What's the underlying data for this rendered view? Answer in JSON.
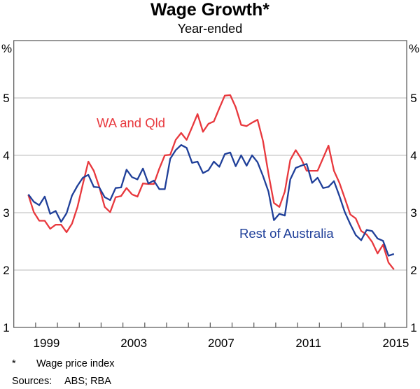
{
  "chart_data": {
    "type": "line",
    "title": "Wage Growth*",
    "subtitle": "Year-ended",
    "ylabel_left": "%",
    "ylabel_right": "%",
    "ylim": [
      1,
      6
    ],
    "yticks": [
      1,
      2,
      3,
      4,
      5
    ],
    "xlim": [
      1998,
      2016
    ],
    "xtick_labels": [
      "1999",
      "2003",
      "2007",
      "2011",
      "2015"
    ],
    "grid": true,
    "frequency": "quarterly",
    "x": [
      "1998-09",
      "1998-12",
      "1999-03",
      "1999-06",
      "1999-09",
      "1999-12",
      "2000-03",
      "2000-06",
      "2000-09",
      "2000-12",
      "2001-03",
      "2001-06",
      "2001-09",
      "2001-12",
      "2002-03",
      "2002-06",
      "2002-09",
      "2002-12",
      "2003-03",
      "2003-06",
      "2003-09",
      "2003-12",
      "2004-03",
      "2004-06",
      "2004-09",
      "2004-12",
      "2005-03",
      "2005-06",
      "2005-09",
      "2005-12",
      "2006-03",
      "2006-06",
      "2006-09",
      "2006-12",
      "2007-03",
      "2007-06",
      "2007-09",
      "2007-12",
      "2008-03",
      "2008-06",
      "2008-09",
      "2008-12",
      "2009-03",
      "2009-06",
      "2009-09",
      "2009-12",
      "2010-03",
      "2010-06",
      "2010-09",
      "2010-12",
      "2011-03",
      "2011-06",
      "2011-09",
      "2011-12",
      "2012-03",
      "2012-06",
      "2012-09",
      "2012-12",
      "2013-03",
      "2013-06",
      "2013-09",
      "2013-12",
      "2014-03",
      "2014-06",
      "2014-09",
      "2014-12",
      "2015-03",
      "2015-06"
    ],
    "series": [
      {
        "name": "WA and Qld",
        "color": "#e8383d",
        "values": [
          3.31,
          3.01,
          2.86,
          2.86,
          2.72,
          2.79,
          2.79,
          2.66,
          2.81,
          3.1,
          3.5,
          3.89,
          3.73,
          3.45,
          3.1,
          3.01,
          3.27,
          3.29,
          3.43,
          3.32,
          3.28,
          3.51,
          3.5,
          3.5,
          3.77,
          4.0,
          4.01,
          4.27,
          4.39,
          4.27,
          4.49,
          4.72,
          4.41,
          4.55,
          4.59,
          4.82,
          5.04,
          5.05,
          4.84,
          4.53,
          4.51,
          4.57,
          4.62,
          4.25,
          3.68,
          3.17,
          3.1,
          3.37,
          3.92,
          4.09,
          3.94,
          3.73,
          3.73,
          3.73,
          3.95,
          4.17,
          3.73,
          3.52,
          3.25,
          2.97,
          2.9,
          2.68,
          2.62,
          2.49,
          2.29,
          2.44,
          2.13,
          2.01
        ]
      },
      {
        "name": "Rest of Australia",
        "color": "#1f3f99",
        "values": [
          3.32,
          3.19,
          3.13,
          3.28,
          2.98,
          3.03,
          2.84,
          2.99,
          3.3,
          3.47,
          3.61,
          3.66,
          3.45,
          3.44,
          3.27,
          3.22,
          3.43,
          3.44,
          3.75,
          3.62,
          3.58,
          3.77,
          3.51,
          3.56,
          3.41,
          3.41,
          3.94,
          4.09,
          4.18,
          4.13,
          3.87,
          3.89,
          3.69,
          3.74,
          3.89,
          3.8,
          4.02,
          4.05,
          3.81,
          4.0,
          3.82,
          4.0,
          3.88,
          3.64,
          3.37,
          2.87,
          2.98,
          2.95,
          3.58,
          3.78,
          3.82,
          3.85,
          3.52,
          3.61,
          3.43,
          3.45,
          3.55,
          3.29,
          3.01,
          2.8,
          2.61,
          2.52,
          2.7,
          2.68,
          2.55,
          2.51,
          2.25,
          2.28
        ]
      }
    ],
    "footnote_mark": "*",
    "footnote": "Wage price index",
    "sources_label": "Sources:",
    "sources": "ABS; RBA"
  }
}
